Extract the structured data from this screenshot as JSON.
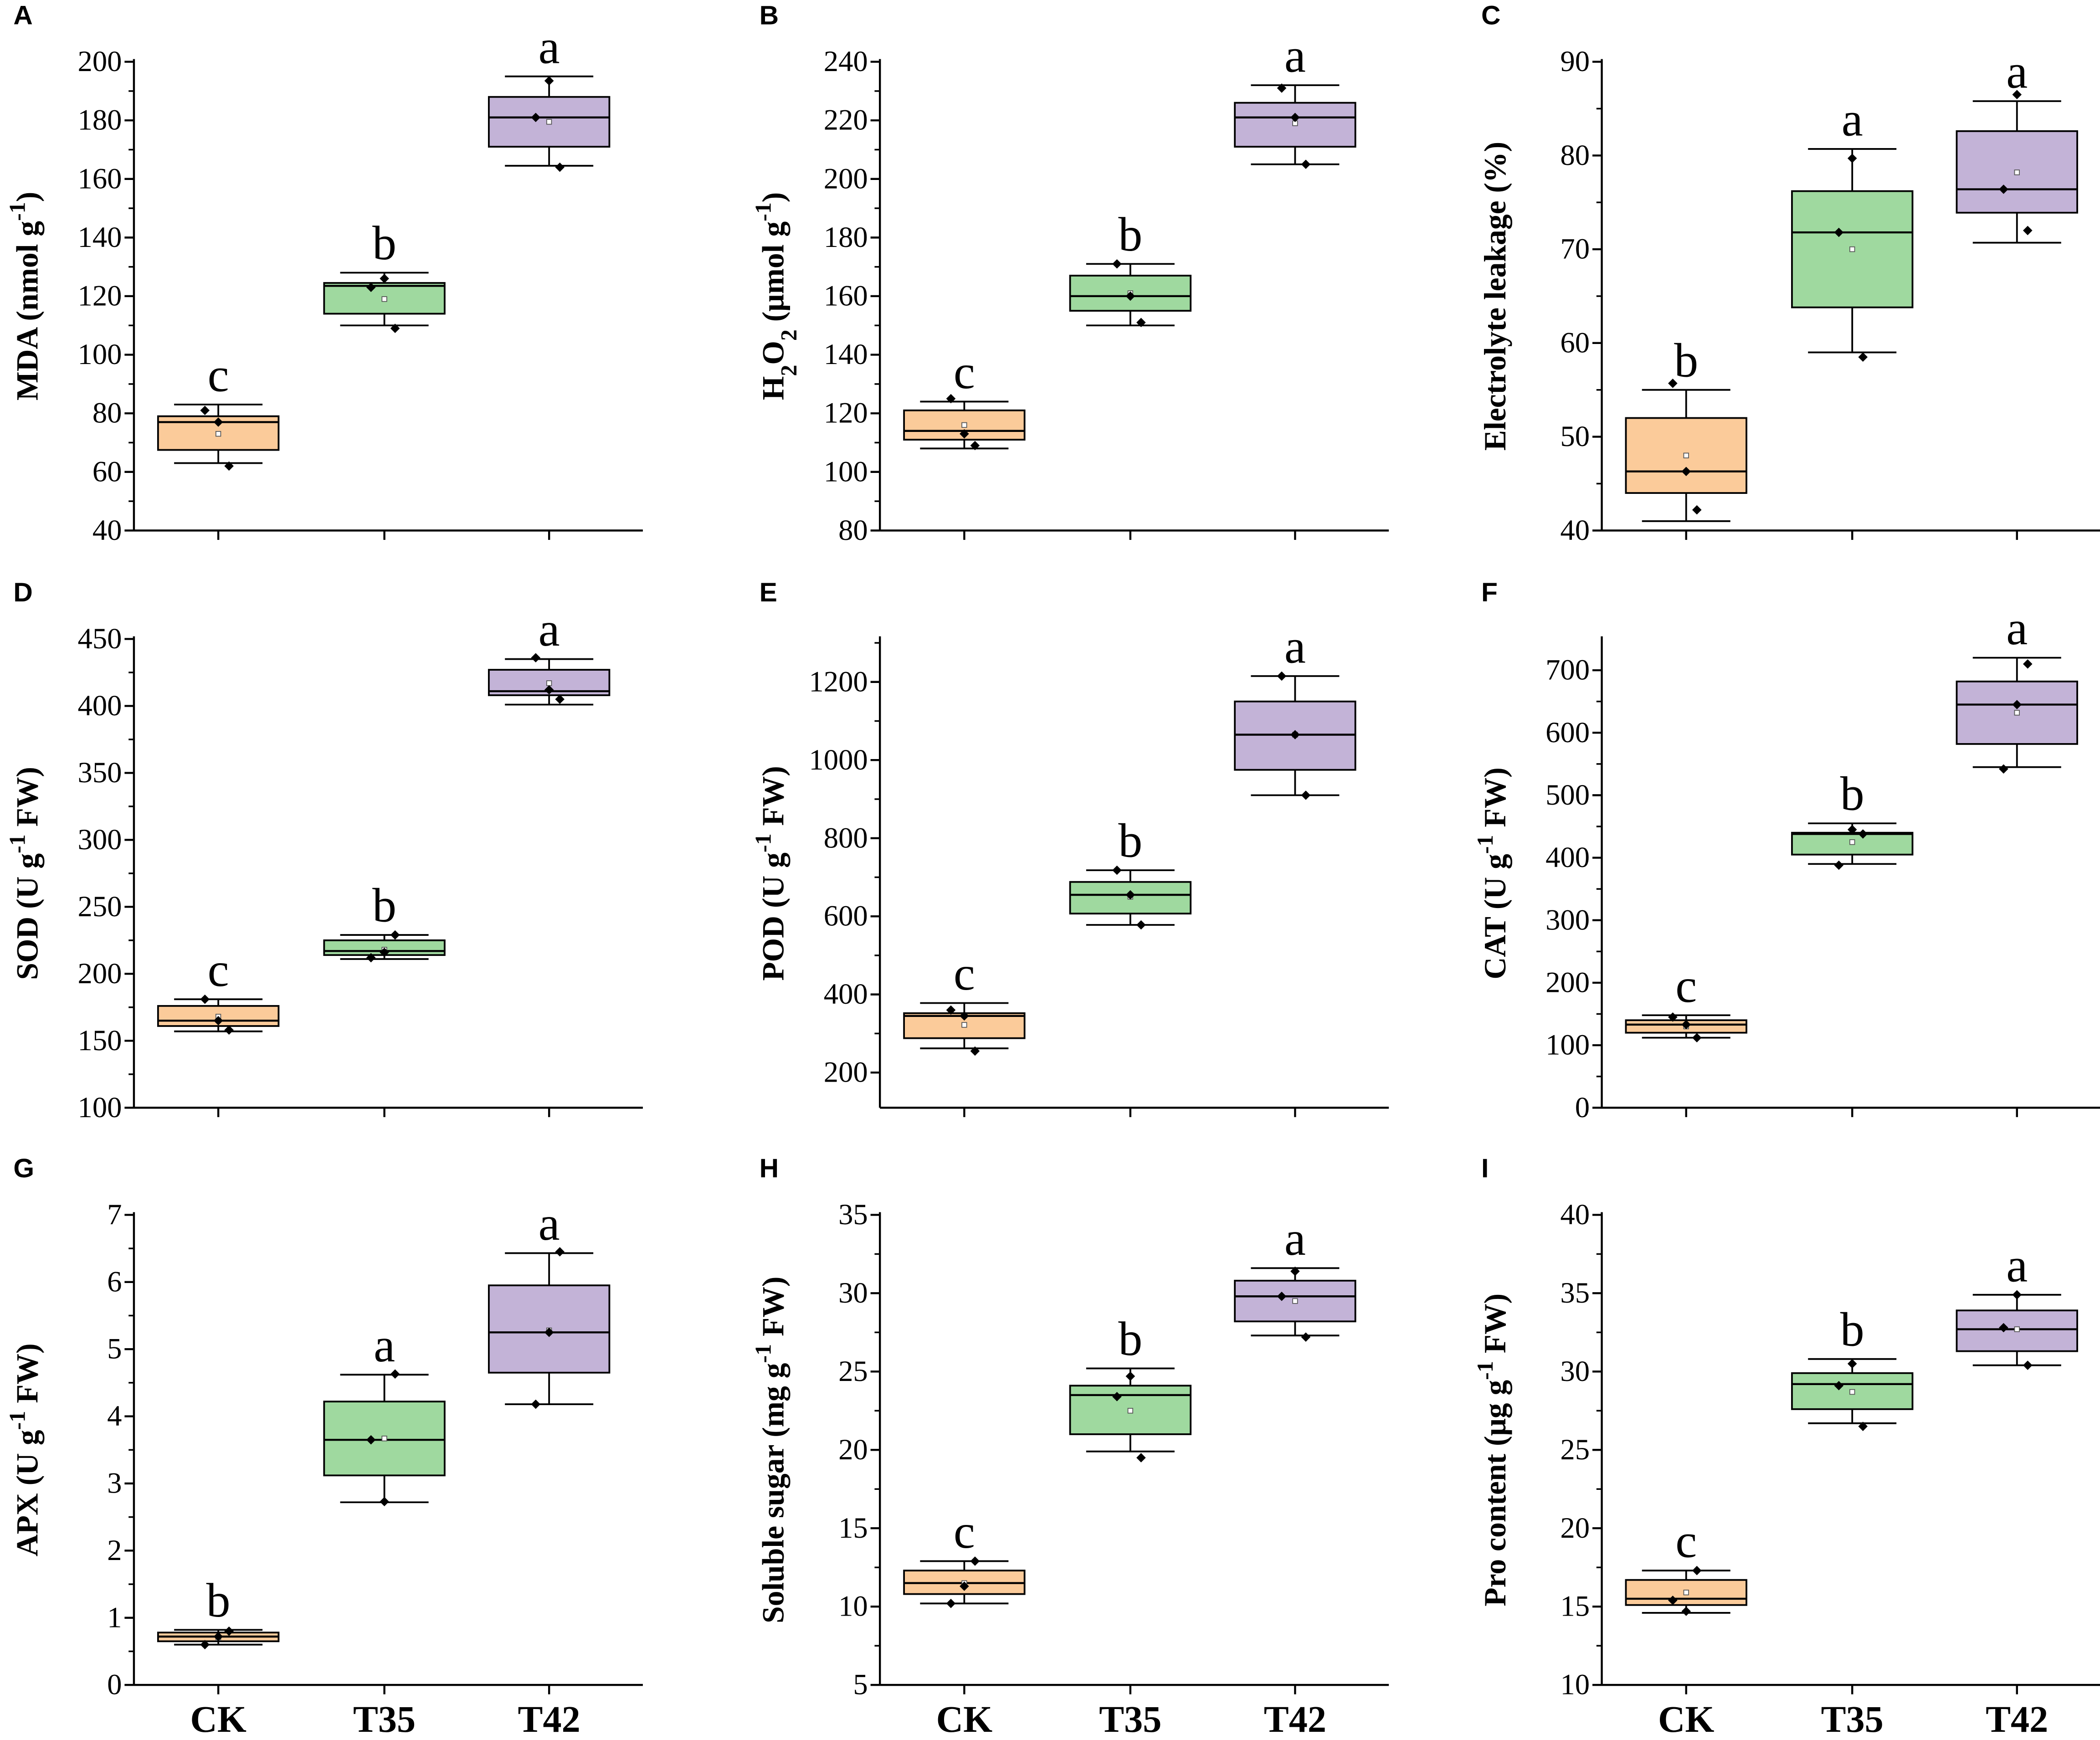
{
  "chart_data": {
    "type": "boxplot",
    "categories": [
      "CK",
      "T35",
      "T42"
    ],
    "colors": {
      "CK": "#FBCB9A",
      "T35": "#9FD99F",
      "T42": "#C3B3D7"
    },
    "panels": [
      {
        "letter": "A",
        "ylabel": [
          {
            "t": "MDA (nmol g"
          },
          {
            "t": "-1",
            "sup": true
          },
          {
            "t": ")"
          }
        ],
        "ylim": [
          40,
          200
        ],
        "ticks": [
          40,
          60,
          80,
          100,
          120,
          140,
          160,
          180,
          200
        ],
        "groups": [
          {
            "wlo": 63,
            "q1": 67.5,
            "med": 77,
            "q3": 79,
            "whi": 83,
            "mean": 73,
            "points": [
              81,
              77,
              62
            ],
            "sig": "c"
          },
          {
            "wlo": 110,
            "q1": 114,
            "med": 123.5,
            "q3": 124.5,
            "whi": 128,
            "mean": 119,
            "points": [
              123,
              126,
              109
            ],
            "sig": "b"
          },
          {
            "wlo": 164.5,
            "q1": 171,
            "med": 181,
            "q3": 188,
            "whi": 195,
            "mean": 179.5,
            "points": [
              181,
              193.5,
              164
            ],
            " sig": "a",
            "sig": "a"
          }
        ]
      },
      {
        "letter": "B",
        "ylabel": [
          {
            "t": "H"
          },
          {
            "t": "2",
            "sub": true
          },
          {
            "t": "O"
          },
          {
            "t": "2",
            "sub": true
          },
          {
            "t": " (μmol g"
          },
          {
            "t": "-1",
            "sup": true
          },
          {
            "t": ")"
          }
        ],
        "ylim": [
          80,
          240
        ],
        "ticks": [
          80,
          100,
          120,
          140,
          160,
          180,
          200,
          220,
          240
        ],
        "groups": [
          {
            "wlo": 108,
            "q1": 111,
            "med": 114,
            "q3": 121,
            "whi": 124,
            "mean": 116,
            "points": [
              125,
              113,
              109
            ],
            "sig": "c"
          },
          {
            "wlo": 150,
            "q1": 155,
            "med": 160,
            "q3": 167,
            "whi": 171,
            "mean": 161,
            "points": [
              171,
              160,
              151
            ],
            "sig": "b"
          },
          {
            "wlo": 205,
            "q1": 211,
            "med": 221,
            "q3": 226,
            "whi": 232,
            "mean": 219,
            "points": [
              231,
              221,
              205
            ],
            "sig": "a"
          }
        ]
      },
      {
        "letter": "C",
        "ylabel": [
          {
            "t": "Electrolyte leakage (%)"
          }
        ],
        "ylim": [
          40,
          90
        ],
        "ticks": [
          40,
          50,
          60,
          70,
          80,
          90
        ],
        "groups": [
          {
            "wlo": 41,
            "q1": 44,
            "med": 46.3,
            "q3": 52,
            "whi": 55,
            "mean": 48,
            "points": [
              55.7,
              46.3,
              42.2
            ],
            "sig": "b"
          },
          {
            "wlo": 59,
            "q1": 63.8,
            "med": 71.8,
            "q3": 76.2,
            "whi": 80.7,
            "mean": 70,
            "points": [
              71.8,
              79.7,
              58.5
            ],
            "sig": "a"
          },
          {
            "wlo": 70.7,
            "q1": 73.9,
            "med": 76.4,
            "q3": 82.6,
            "whi": 85.8,
            "mean": 78.2,
            "points": [
              76.4,
              86.5,
              72
            ],
            "sig": "a"
          }
        ]
      },
      {
        "letter": "D",
        "ylabel": [
          {
            "t": "SOD (U g"
          },
          {
            "t": "-1",
            "sup": true
          },
          {
            "t": " FW)"
          }
        ],
        "ylim": [
          100,
          450
        ],
        "ticks": [
          100,
          150,
          200,
          250,
          300,
          350,
          400,
          450
        ],
        "groups": [
          {
            "wlo": 157,
            "q1": 161,
            "med": 165,
            "q3": 176,
            "whi": 181,
            "mean": 168,
            "points": [
              181,
              165,
              158
            ],
            "sig": "c"
          },
          {
            "wlo": 211,
            "q1": 214,
            "med": 217,
            "q3": 225,
            "whi": 229,
            "mean": 218,
            "points": [
              212,
              216,
              229
            ],
            "sig": "b"
          },
          {
            "wlo": 401,
            "q1": 408,
            "med": 411,
            "q3": 427,
            "whi": 435,
            "mean": 417,
            "points": [
              436,
              412,
              405
            ],
            "sig": "a"
          }
        ]
      },
      {
        "letter": "E",
        "ylabel": [
          {
            "t": "POD (U g"
          },
          {
            "t": "-1",
            "sup": true
          },
          {
            "t": " FW)"
          }
        ],
        "ylim": [
          110,
          1310
        ],
        "ticks": [
          200,
          400,
          600,
          800,
          1000,
          1200
        ],
        "groups": [
          {
            "wlo": 262,
            "q1": 288,
            "med": 345,
            "q3": 352,
            "whi": 378,
            "mean": 322,
            "points": [
              360,
              345,
              255
            ],
            "sig": "c"
          },
          {
            "wlo": 578,
            "q1": 607,
            "med": 655,
            "q3": 688,
            "whi": 718,
            "mean": 650,
            "points": [
              718,
              655,
              578
            ],
            "sig": "b"
          },
          {
            "wlo": 910,
            "q1": 975,
            "med": 1065,
            "q3": 1150,
            "whi": 1215,
            "mean": 1065,
            "points": [
              1215,
              1065,
              910
            ],
            "sig": "a"
          }
        ]
      },
      {
        "letter": "F",
        "ylabel": [
          {
            "t": "CAT (U g"
          },
          {
            "t": "-1",
            "sup": true
          },
          {
            "t": " FW)"
          }
        ],
        "ylim": [
          0,
          750
        ],
        "ticks": [
          0,
          100,
          200,
          300,
          400,
          500,
          600,
          700
        ],
        "groups": [
          {
            "wlo": 112,
            "q1": 120,
            "med": 133,
            "q3": 140,
            "whi": 148,
            "mean": 130,
            "points": [
              145,
              133,
              112
            ],
            "sig": "c"
          },
          {
            "wlo": 390,
            "q1": 405,
            "med": 438,
            "q3": 440,
            "whi": 455,
            "mean": 425,
            "points": [
              388,
              445,
              438
            ],
            "sig": "b"
          },
          {
            "wlo": 545,
            "q1": 582,
            "med": 645,
            "q3": 682,
            "whi": 720,
            "mean": 632,
            "points": [
              542,
              645,
              710
            ],
            "sig": "a"
          }
        ]
      },
      {
        "letter": "G",
        "ylabel": [
          {
            "t": "APX (U g"
          },
          {
            "t": "-1",
            "sup": true
          },
          {
            "t": " FW)"
          }
        ],
        "ylim": [
          0,
          7
        ],
        "ticks": [
          0,
          1,
          2,
          3,
          4,
          5,
          6,
          7
        ],
        "groups": [
          {
            "wlo": 0.6,
            "q1": 0.65,
            "med": 0.72,
            "q3": 0.78,
            "whi": 0.82,
            "mean": 0.7,
            "points": [
              0.6,
              0.72,
              0.8
            ],
            "sig": "b"
          },
          {
            "wlo": 2.72,
            "q1": 3.12,
            "med": 3.65,
            "q3": 4.22,
            "whi": 4.62,
            "mean": 3.67,
            "points": [
              3.65,
              2.73,
              4.63
            ],
            "sig": "a"
          },
          {
            "wlo": 4.18,
            "q1": 4.65,
            "med": 5.25,
            "q3": 5.95,
            "whi": 6.43,
            "mean": 5.28,
            "points": [
              4.18,
              5.25,
              6.45
            ],
            "sig": "a"
          }
        ]
      },
      {
        "letter": "H",
        "ylabel": [
          {
            "t": "Soluble sugar (mg g"
          },
          {
            "t": "-1",
            "sup": true
          },
          {
            "t": " FW)"
          }
        ],
        "ylim": [
          5,
          35
        ],
        "ticks": [
          5,
          10,
          15,
          20,
          25,
          30,
          35
        ],
        "groups": [
          {
            "wlo": 10.2,
            "q1": 10.8,
            "med": 11.5,
            "q3": 12.3,
            "whi": 12.9,
            "mean": 11.5,
            "points": [
              10.2,
              11.3,
              12.9
            ],
            "sig": "c"
          },
          {
            "wlo": 19.9,
            "q1": 21,
            "med": 23.5,
            "q3": 24.1,
            "whi": 25.2,
            "mean": 22.5,
            "points": [
              23.4,
              24.7,
              19.5
            ],
            "sig": "b"
          },
          {
            "wlo": 27.3,
            "q1": 28.2,
            "med": 29.8,
            "q3": 30.8,
            "whi": 31.6,
            "mean": 29.5,
            "points": [
              29.8,
              31.4,
              27.2
            ],
            "sig": "a"
          }
        ]
      },
      {
        "letter": "I",
        "ylabel": [
          {
            "t": "Pro content (μg g"
          },
          {
            "t": "-1",
            "sup": true
          },
          {
            "t": " FW)"
          }
        ],
        "ylim": [
          10,
          40
        ],
        "ticks": [
          10,
          15,
          20,
          25,
          30,
          35,
          40
        ],
        "groups": [
          {
            "wlo": 14.6,
            "q1": 15.1,
            "med": 15.5,
            "q3": 16.7,
            "whi": 17.3,
            "mean": 15.9,
            "points": [
              15.4,
              14.7,
              17.3
            ],
            "sig": "c"
          },
          {
            "wlo": 26.7,
            "q1": 27.6,
            "med": 29.2,
            "q3": 29.9,
            "whi": 30.8,
            "mean": 28.7,
            "points": [
              29.1,
              30.5,
              26.5
            ],
            "sig": "b"
          },
          {
            "wlo": 30.4,
            "q1": 31.3,
            "med": 32.7,
            "q3": 33.9,
            "whi": 34.9,
            "mean": 32.7,
            "points": [
              32.8,
              34.9,
              30.4
            ],
            "sig": "a"
          }
        ]
      }
    ]
  }
}
